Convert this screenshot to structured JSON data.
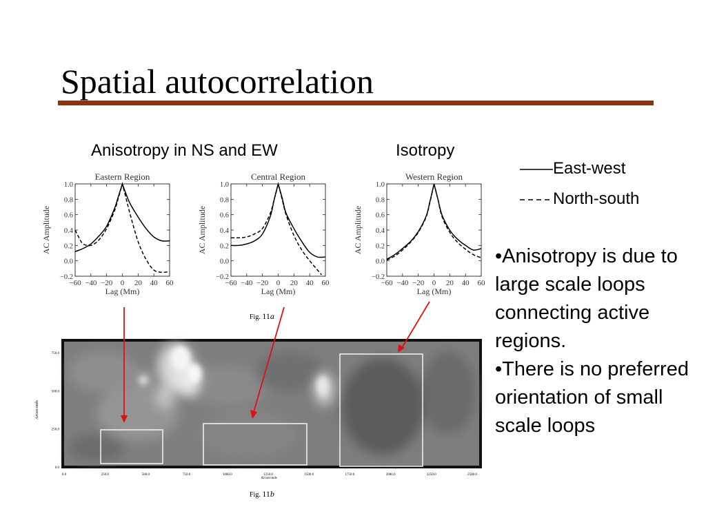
{
  "title": "Spatial autocorrelation",
  "captions": {
    "anisotropy": "Anisotropy in NS and EW",
    "isotropy": "Isotropy"
  },
  "legend": {
    "east_west": "East-west",
    "north_south": "North-south"
  },
  "bullets": [
    "•Anisotropy is due to large scale loops connecting active regions.",
    "•There is no preferred orientation of small scale loops"
  ],
  "figure_a_label": {
    "prefix": "Fig. ",
    "number": "11",
    "suffix": "a"
  },
  "figure_b_label": {
    "prefix": "Fig. ",
    "number": "11",
    "suffix": "b"
  },
  "colors": {
    "title_rule": "#8b3210",
    "arrow": "#dd1111",
    "box": "#eeeeee"
  },
  "chart_data": [
    {
      "type": "line",
      "title": "Eastern Region",
      "xlabel": "Lag (Mm)",
      "ylabel": "AC Amplitude",
      "xlim": [
        -60,
        60
      ],
      "ylim": [
        -0.2,
        1.0
      ],
      "xticks": [
        -60,
        -40,
        -20,
        0,
        20,
        40,
        60
      ],
      "yticks": [
        -0.2,
        0.0,
        0.2,
        0.4,
        0.6,
        0.8,
        1.0
      ],
      "series": [
        {
          "name": "East-west",
          "style": "solid",
          "x": [
            -60,
            -50,
            -40,
            -30,
            -20,
            -10,
            -5,
            0,
            5,
            10,
            20,
            30,
            40,
            50,
            60
          ],
          "y": [
            0.12,
            0.16,
            0.22,
            0.32,
            0.45,
            0.68,
            0.84,
            1.0,
            0.86,
            0.74,
            0.57,
            0.42,
            0.31,
            0.26,
            0.26
          ]
        },
        {
          "name": "North-south",
          "style": "dashed",
          "x": [
            -60,
            -55,
            -50,
            -40,
            -30,
            -20,
            -10,
            -5,
            0,
            5,
            10,
            20,
            30,
            40,
            50,
            60
          ],
          "y": [
            0.4,
            0.3,
            0.22,
            0.2,
            0.27,
            0.42,
            0.65,
            0.82,
            1.0,
            0.8,
            0.6,
            0.25,
            0.02,
            -0.12,
            -0.15,
            -0.14
          ]
        }
      ]
    },
    {
      "type": "line",
      "title": "Central Region",
      "xlabel": "Lag (Mm)",
      "ylabel": "AC Amplitude",
      "xlim": [
        -60,
        60
      ],
      "ylim": [
        -0.2,
        1.0
      ],
      "xticks": [
        -60,
        -40,
        -20,
        0,
        20,
        40,
        60
      ],
      "yticks": [
        -0.2,
        0.0,
        0.2,
        0.4,
        0.6,
        0.8,
        1.0
      ],
      "series": [
        {
          "name": "East-west",
          "style": "solid",
          "x": [
            -60,
            -50,
            -40,
            -30,
            -20,
            -10,
            -5,
            0,
            5,
            10,
            20,
            30,
            40,
            50,
            60
          ],
          "y": [
            0.2,
            0.2,
            0.22,
            0.26,
            0.35,
            0.58,
            0.8,
            1.0,
            0.82,
            0.62,
            0.42,
            0.25,
            0.11,
            0.05,
            0.05
          ]
        },
        {
          "name": "North-south",
          "style": "dashed",
          "x": [
            -60,
            -50,
            -40,
            -30,
            -20,
            -10,
            -5,
            0,
            5,
            10,
            20,
            30,
            40,
            50,
            55
          ],
          "y": [
            0.3,
            0.3,
            0.31,
            0.35,
            0.42,
            0.62,
            0.8,
            1.0,
            0.8,
            0.6,
            0.33,
            0.14,
            0.0,
            -0.12,
            -0.18
          ]
        }
      ]
    },
    {
      "type": "line",
      "title": "Western Region",
      "xlabel": "Lag (Mm)",
      "ylabel": "AC Amplitude",
      "xlim": [
        -60,
        60
      ],
      "ylim": [
        -0.2,
        1.0
      ],
      "xticks": [
        -60,
        -40,
        -20,
        0,
        20,
        40,
        60
      ],
      "yticks": [
        -0.2,
        0.0,
        0.2,
        0.4,
        0.6,
        0.8,
        1.0
      ],
      "series": [
        {
          "name": "East-west",
          "style": "solid",
          "x": [
            -60,
            -50,
            -40,
            -30,
            -20,
            -10,
            -5,
            0,
            5,
            10,
            20,
            30,
            40,
            50,
            60
          ],
          "y": [
            0.02,
            0.08,
            0.16,
            0.25,
            0.38,
            0.58,
            0.78,
            1.0,
            0.8,
            0.6,
            0.4,
            0.28,
            0.2,
            0.14,
            0.16
          ]
        },
        {
          "name": "North-south",
          "style": "dashed",
          "x": [
            -60,
            -50,
            -40,
            -30,
            -20,
            -10,
            -5,
            0,
            5,
            10,
            20,
            30,
            40,
            50,
            60
          ],
          "y": [
            0.01,
            0.06,
            0.14,
            0.24,
            0.37,
            0.57,
            0.77,
            1.0,
            0.8,
            0.58,
            0.37,
            0.24,
            0.15,
            0.08,
            0.04
          ]
        }
      ]
    },
    {
      "type": "image",
      "ylabel": "Arcseconds",
      "xlabel": "Arcseconds",
      "xticks": [
        "0.0",
        "250.0",
        "500.0",
        "750.0",
        "1000.0",
        "1250.0",
        "1500.0",
        "1750.0",
        "2000.0",
        "2250.0",
        "2500.0"
      ],
      "yticks": [
        "0.0",
        "250.0",
        "500.0",
        "750.0"
      ]
    }
  ]
}
